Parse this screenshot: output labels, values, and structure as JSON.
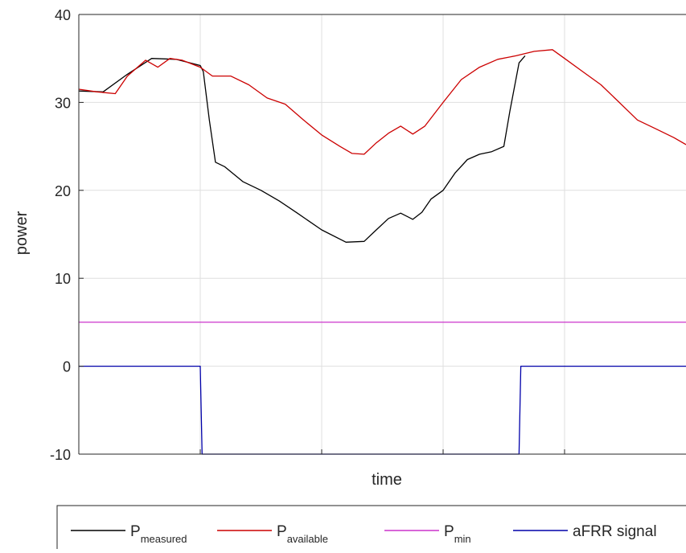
{
  "chart_data": {
    "type": "line",
    "xlabel": "time",
    "ylabel": "power",
    "ylim": [
      -10,
      40
    ],
    "yticks": [
      -10,
      0,
      10,
      20,
      30,
      40
    ],
    "ytick_labels": [
      "-10",
      "0",
      "10",
      "20",
      "30",
      "40"
    ],
    "x_tick_labels": "none",
    "x_domain": [
      0,
      100
    ],
    "grid": true,
    "legend_position": "bottom-horizontal",
    "series": [
      {
        "name": "P_measured",
        "label_main": "P",
        "label_sub": "measured",
        "color": "#000000",
        "x": [
          0,
          4,
          8,
          12,
          16,
          20,
          20.5,
          21.5,
          22.5,
          24,
          27,
          30,
          33,
          36,
          40,
          44,
          47,
          49,
          51,
          53,
          55,
          56.5,
          58,
          60,
          62,
          64,
          66,
          68,
          70,
          71,
          72.5,
          73.5
        ],
        "y": [
          31.3,
          31.2,
          33.2,
          35.0,
          34.9,
          34.2,
          33.5,
          28.0,
          23.2,
          22.7,
          21.0,
          20.0,
          18.8,
          17.4,
          15.5,
          14.1,
          14.2,
          15.5,
          16.8,
          17.4,
          16.7,
          17.5,
          19.0,
          20.0,
          22.0,
          23.5,
          24.1,
          24.4,
          25.0,
          29.0,
          34.5,
          35.3
        ]
      },
      {
        "name": "P_available",
        "label_main": "P",
        "label_sub": "available",
        "color": "#cc0000",
        "x": [
          0,
          3,
          6,
          8,
          11,
          13,
          15,
          17,
          20,
          22,
          25,
          28,
          31,
          34,
          37,
          40,
          43,
          45,
          47,
          49,
          51,
          53,
          55,
          57,
          60,
          63,
          66,
          69,
          72,
          75,
          78,
          80,
          83,
          86,
          89,
          92,
          95,
          98,
          100
        ],
        "y": [
          31.5,
          31.2,
          31.0,
          33.0,
          34.8,
          34.0,
          35.0,
          34.8,
          34.0,
          33.0,
          33.0,
          32.0,
          30.5,
          29.8,
          28.0,
          26.3,
          25.0,
          24.2,
          24.1,
          25.4,
          26.5,
          27.3,
          26.4,
          27.3,
          30.0,
          32.6,
          34.0,
          34.9,
          35.3,
          35.8,
          36.0,
          35.0,
          33.5,
          32.0,
          30.0,
          28.0,
          27.0,
          26.0,
          25.2
        ]
      },
      {
        "name": "P_min",
        "label_main": "P",
        "label_sub": "min",
        "color": "#cc33cc",
        "x": [
          0,
          100
        ],
        "y": [
          5,
          5
        ]
      },
      {
        "name": "aFRR signal",
        "label_main": "aFRR signal",
        "label_sub": "",
        "color": "#0000aa",
        "x": [
          0,
          20,
          20.3,
          72.5,
          72.8,
          100
        ],
        "y": [
          0,
          0,
          -10,
          -10,
          0,
          0
        ]
      }
    ]
  }
}
